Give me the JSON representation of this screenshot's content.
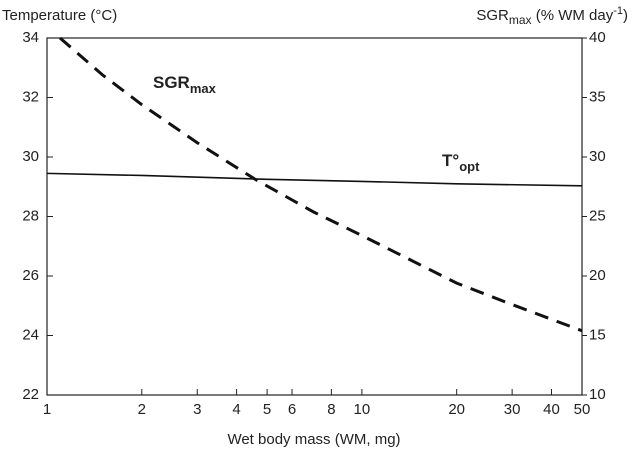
{
  "chart_data": {
    "type": "line",
    "ylabel": "Temperature (°C)",
    "y2label_parts": [
      "SGR",
      "max",
      " (% WM day",
      "-1",
      ")"
    ],
    "xlabel": "Wet body mass (WM, mg)",
    "xlog": true,
    "xlim": [
      1,
      50
    ],
    "xticks": [
      1,
      2,
      3,
      4,
      5,
      6,
      8,
      10,
      20,
      30,
      40,
      50
    ],
    "ylim": [
      22,
      34
    ],
    "yticks": [
      22,
      24,
      26,
      28,
      30,
      32,
      34
    ],
    "y2lim": [
      10,
      40
    ],
    "y2ticks": [
      10,
      15,
      20,
      25,
      30,
      35,
      40
    ],
    "series": [
      {
        "name": "T°opt",
        "color": "#111111",
        "dash": false,
        "x": [
          1,
          2,
          5,
          10,
          20,
          50
        ],
        "values": [
          29.45,
          29.38,
          29.25,
          29.18,
          29.1,
          29.03
        ]
      },
      {
        "name": "SGRmax",
        "color": "#111111",
        "dash": true,
        "axis": "y2",
        "x": [
          1.1,
          1.5,
          2,
          3,
          4.6,
          7,
          10,
          20,
          30,
          50
        ],
        "values": [
          40,
          36.9,
          34.4,
          31.2,
          28.1,
          25.4,
          23.4,
          19.4,
          17.6,
          15.4
        ]
      }
    ],
    "annotations": [
      {
        "parts": [
          "SGR",
          "max"
        ]
      },
      {
        "parts": [
          "T°",
          "opt"
        ]
      }
    ]
  }
}
